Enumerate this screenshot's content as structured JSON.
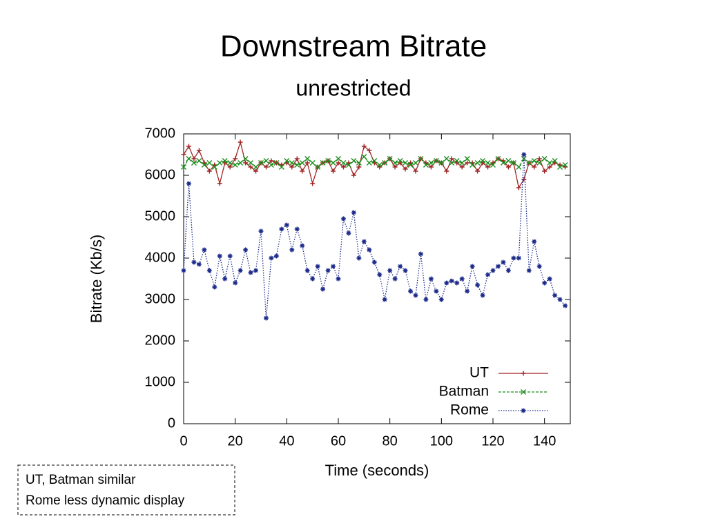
{
  "chart_data": {
    "type": "line",
    "title": "Downstream Bitrate",
    "subtitle": "unrestricted",
    "xlabel": "Time (seconds)",
    "ylabel": "Bitrate (Kb/s)",
    "xlim": [
      0,
      150
    ],
    "ylim": [
      0,
      7000
    ],
    "xticks": [
      0,
      20,
      40,
      60,
      80,
      100,
      120,
      140
    ],
    "yticks": [
      0,
      1000,
      2000,
      3000,
      4000,
      5000,
      6000,
      7000
    ],
    "grid": false,
    "legend": "lower right",
    "x": [
      0,
      2,
      4,
      6,
      8,
      10,
      12,
      14,
      16,
      18,
      20,
      22,
      24,
      26,
      28,
      30,
      32,
      34,
      36,
      38,
      40,
      42,
      44,
      46,
      48,
      50,
      52,
      54,
      56,
      58,
      60,
      62,
      64,
      66,
      68,
      70,
      72,
      74,
      76,
      78,
      80,
      82,
      84,
      86,
      88,
      90,
      92,
      94,
      96,
      98,
      100,
      102,
      104,
      106,
      108,
      110,
      112,
      114,
      116,
      118,
      120,
      122,
      124,
      126,
      128,
      130,
      132,
      134,
      136,
      138,
      140,
      142,
      144,
      146,
      148
    ],
    "series": [
      {
        "name": "UT",
        "color": "#a02424",
        "marker": "plus",
        "dash": "none",
        "values": [
          6500,
          6700,
          6400,
          6600,
          6300,
          6100,
          6250,
          5800,
          6300,
          6200,
          6400,
          6800,
          6300,
          6200,
          6100,
          6300,
          6200,
          6350,
          6300,
          6250,
          6300,
          6200,
          6400,
          6100,
          6300,
          5800,
          6200,
          6300,
          6350,
          6100,
          6300,
          6200,
          6300,
          6000,
          6200,
          6700,
          6600,
          6300,
          6200,
          6300,
          6400,
          6200,
          6300,
          6150,
          6300,
          6100,
          6400,
          6300,
          6200,
          6350,
          6300,
          6100,
          6400,
          6300,
          6200,
          6300,
          6300,
          6100,
          6300,
          6200,
          6300,
          6400,
          6350,
          6200,
          6300,
          5700,
          5900,
          6300,
          6200,
          6400,
          6100,
          6200,
          6300,
          6250,
          6200
        ]
      },
      {
        "name": "Batman",
        "color": "#1a8c1a",
        "marker": "cross",
        "dash": "4 2",
        "values": [
          6200,
          6400,
          6300,
          6350,
          6250,
          6300,
          6200,
          6300,
          6350,
          6300,
          6250,
          6300,
          6400,
          6300,
          6200,
          6300,
          6350,
          6250,
          6300,
          6200,
          6350,
          6300,
          6250,
          6300,
          6400,
          6300,
          6200,
          6300,
          6350,
          6300,
          6400,
          6300,
          6250,
          6350,
          6300,
          6450,
          6300,
          6350,
          6250,
          6300,
          6400,
          6300,
          6350,
          6300,
          6250,
          6300,
          6400,
          6250,
          6300,
          6350,
          6300,
          6400,
          6300,
          6350,
          6300,
          6400,
          6250,
          6300,
          6350,
          6300,
          6250,
          6400,
          6300,
          6350,
          6300,
          6200,
          6400,
          6300,
          6350,
          6300,
          6400,
          6300,
          6350,
          6200,
          6250
        ]
      },
      {
        "name": "Rome",
        "color": "#1c2a8a",
        "marker": "star",
        "dash": "1.5 2",
        "values": [
          3700,
          5800,
          3900,
          3850,
          4200,
          3700,
          3300,
          4050,
          3500,
          4050,
          3400,
          3700,
          4200,
          3650,
          3700,
          4650,
          2550,
          4000,
          4050,
          4700,
          4800,
          4200,
          4700,
          4300,
          3700,
          3500,
          3800,
          3250,
          3700,
          3800,
          3500,
          4950,
          4600,
          5100,
          4000,
          4400,
          4200,
          3900,
          3600,
          3000,
          3700,
          3500,
          3800,
          3700,
          3200,
          3100,
          4100,
          3000,
          3500,
          3200,
          3000,
          3400,
          3450,
          3400,
          3500,
          3200,
          3800,
          3350,
          3100,
          3600,
          3700,
          3800,
          3900,
          3700,
          4000,
          4000,
          6500,
          3700,
          4400,
          3800,
          3400,
          3500,
          3100,
          3000,
          2850
        ]
      }
    ],
    "annotations": [
      "UT, Batman similar",
      "Rome less dynamic display"
    ]
  }
}
